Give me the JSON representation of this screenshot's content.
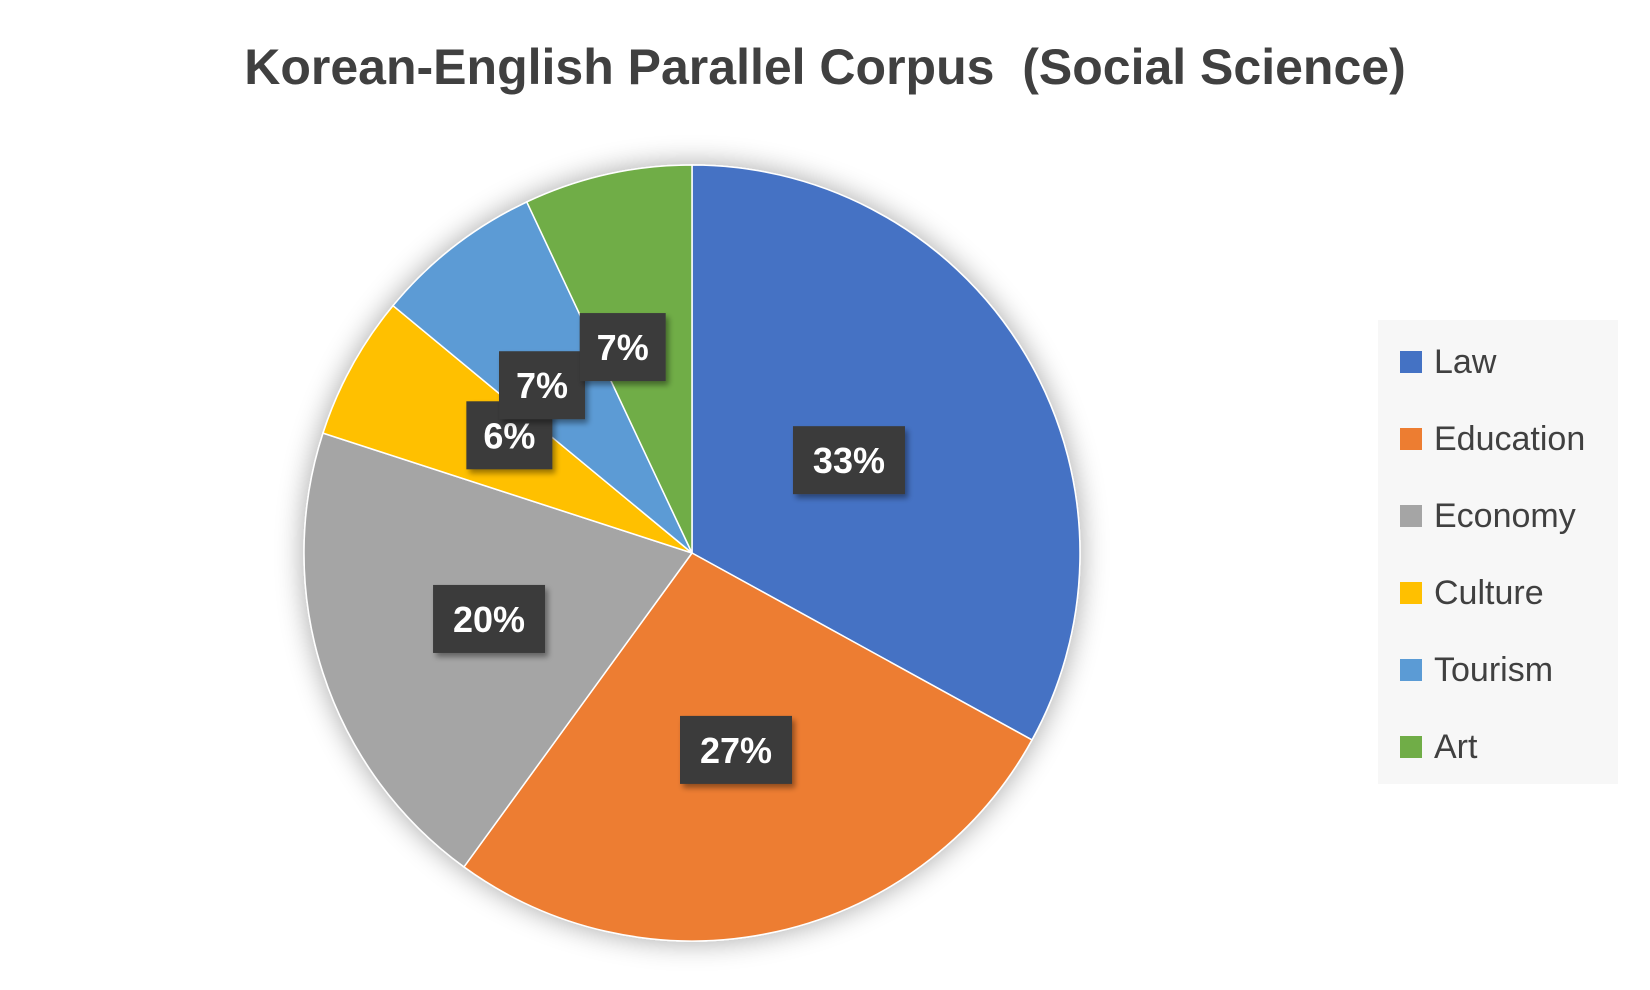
{
  "chart_data": {
    "type": "pie",
    "title": "Korean-English Parallel Corpus  (Social Science)",
    "categories": [
      "Law",
      "Education",
      "Economy",
      "Culture",
      "Tourism",
      "Art"
    ],
    "values": [
      33,
      27,
      20,
      6,
      7,
      7
    ],
    "data_labels": [
      "33%",
      "27%",
      "20%",
      "6%",
      "7%",
      "7%"
    ],
    "colors": [
      "#4472C4",
      "#ED7D31",
      "#A5A5A5",
      "#FFC000",
      "#5B9BD5",
      "#70AD47"
    ],
    "legend": "right",
    "start_angle": "12 o'clock",
    "direction": "clockwise"
  }
}
